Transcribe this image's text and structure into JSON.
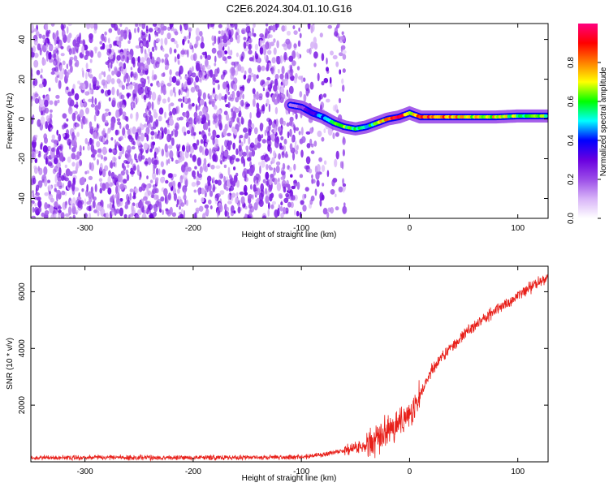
{
  "title": "C2E6.2024.304.01.10.G16",
  "chart_data": [
    {
      "type": "heatmap",
      "title": "C2E6.2024.304.01.10.G16",
      "xlabel": "Height of straight line (km)",
      "ylabel": "Frequency (Hz)",
      "xlim": [
        -350,
        128
      ],
      "ylim": [
        -50,
        48
      ],
      "xticks": [
        -300,
        -200,
        -100,
        0,
        100
      ],
      "yticks": [
        -40,
        -20,
        0,
        20,
        40
      ],
      "tick_labels_x": [
        "-300",
        "-200",
        "-100",
        "0",
        "100"
      ],
      "tick_labels_y": [
        "-40",
        "-20",
        "0",
        "20",
        "40"
      ],
      "colorbar": {
        "label": "Normalized spectral amplitude",
        "range": [
          0,
          1
        ],
        "ticks": [
          0,
          0.2,
          0.4,
          0.6,
          0.8
        ],
        "tick_labels": [
          "0.0",
          "0.2",
          "0.4",
          "0.6",
          "0.8"
        ],
        "colormap": [
          "#ffffff",
          "#d8b4f8",
          "#9b4de8",
          "#6a00e0",
          "#0000ff",
          "#00ffff",
          "#00ff00",
          "#ffff00",
          "#ff7f00",
          "#ff0000",
          "#ff0080"
        ]
      },
      "noise_region_x": [
        -350,
        -60
      ],
      "ridge": {
        "x": [
          -110,
          -100,
          -90,
          -80,
          -70,
          -60,
          -50,
          -40,
          -30,
          -20,
          -10,
          0,
          10,
          20,
          40,
          60,
          80,
          100,
          128
        ],
        "frequency": [
          7,
          6,
          3,
          1,
          -2,
          -4,
          -5,
          -4,
          -2,
          0,
          1,
          3,
          1,
          1,
          1,
          1,
          1,
          1.5,
          1.5
        ],
        "amplitude": [
          0.15,
          0.2,
          0.35,
          0.45,
          0.55,
          0.6,
          0.55,
          0.5,
          0.6,
          0.85,
          0.9,
          0.7,
          0.9,
          0.85,
          0.75,
          0.7,
          0.7,
          0.6,
          0.6
        ]
      }
    },
    {
      "type": "line",
      "xlabel": "Height of straight line (km)",
      "ylabel": "SNR (10 * v/v)",
      "xlim": [
        -350,
        128
      ],
      "ylim": [
        0,
        6900
      ],
      "xticks": [
        -300,
        -200,
        -100,
        0,
        100
      ],
      "yticks": [
        2000,
        4000,
        6000
      ],
      "tick_labels_x": [
        "-300",
        "-200",
        "-100",
        "0",
        "100"
      ],
      "tick_labels_y": [
        "2000",
        "4000",
        "6000"
      ],
      "series": [
        {
          "color": "#e8201a",
          "x": [
            -350,
            -300,
            -250,
            -200,
            -150,
            -100,
            -80,
            -60,
            -50,
            -40,
            -35,
            -30,
            -20,
            -10,
            0,
            10,
            20,
            30,
            50,
            70,
            90,
            110,
            128
          ],
          "y": [
            150,
            150,
            150,
            150,
            150,
            170,
            250,
            400,
            500,
            550,
            700,
            800,
            1100,
            1350,
            1700,
            2400,
            3200,
            3700,
            4500,
            5100,
            5600,
            6100,
            6550
          ]
        }
      ]
    }
  ]
}
